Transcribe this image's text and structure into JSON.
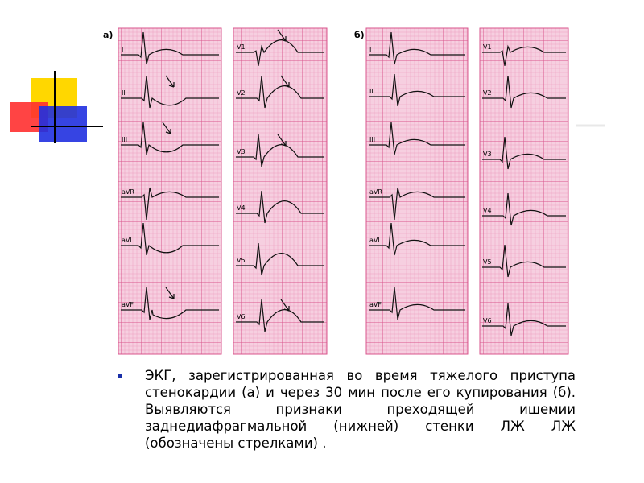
{
  "panels": [
    {
      "label": "а)",
      "strips": [
        {
          "leads": [
            "I",
            "II",
            "III",
            "aVR",
            "aVL",
            "aVF"
          ]
        },
        {
          "leads": [
            "V1",
            "V2",
            "V3",
            "V4",
            "V5",
            "V6"
          ]
        }
      ]
    },
    {
      "label": "б)",
      "strips": [
        {
          "leads": [
            "I",
            "II",
            "III",
            "aVR",
            "aVL",
            "aVF"
          ]
        },
        {
          "leads": [
            "V1",
            "V2",
            "V3",
            "V4",
            "V5",
            "V6"
          ]
        }
      ]
    }
  ],
  "caption": "ЭКГ, зарегистрированная во время тяжелого приступа стенокардии (а) и через 30 мин после его купирования (б). Выявляются признаки преходящей ишемии заднедиафрагмальной (нижней)  стенки ЛЖ ЛЖ (обозначены стрелками) ."
}
